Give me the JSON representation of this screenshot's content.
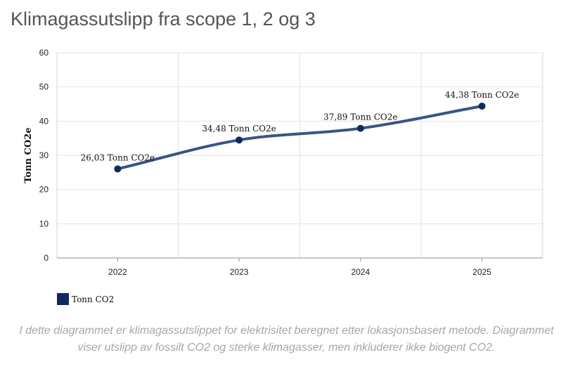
{
  "page": {
    "title": "Klimagassutslipp fra scope 1, 2 og 3",
    "caption": "I dette diagrammet er klimagassutslippet for elektrisitet beregnet etter lokasjonsbasert metode. Diagrammet viser utslipp av fossilt CO2 og sterke klimagasser, men inkluderer ikke biogent CO2."
  },
  "chart_data": {
    "type": "line",
    "title": "Klimagassutslipp fra scope 1, 2 og 3",
    "xlabel": "",
    "ylabel": "Tonn CO2e",
    "categories": [
      "2022",
      "2023",
      "2024",
      "2025"
    ],
    "ylim": [
      0,
      60
    ],
    "yticks": [
      "0",
      "10",
      "20",
      "30",
      "40",
      "50",
      "60"
    ],
    "grid": true,
    "legend_position": "bottom-left",
    "series": [
      {
        "name": "Tonn CO2",
        "values": [
          26.03,
          34.48,
          37.89,
          44.38
        ],
        "labels": [
          "26,03 Tonn CO2e",
          "34,48 Tonn CO2e",
          "37,89 Tonn CO2e",
          "44,38 Tonn CO2e"
        ],
        "line_color": "#3a5584",
        "marker_color": "#0d2b5e",
        "smooth": true
      }
    ]
  }
}
